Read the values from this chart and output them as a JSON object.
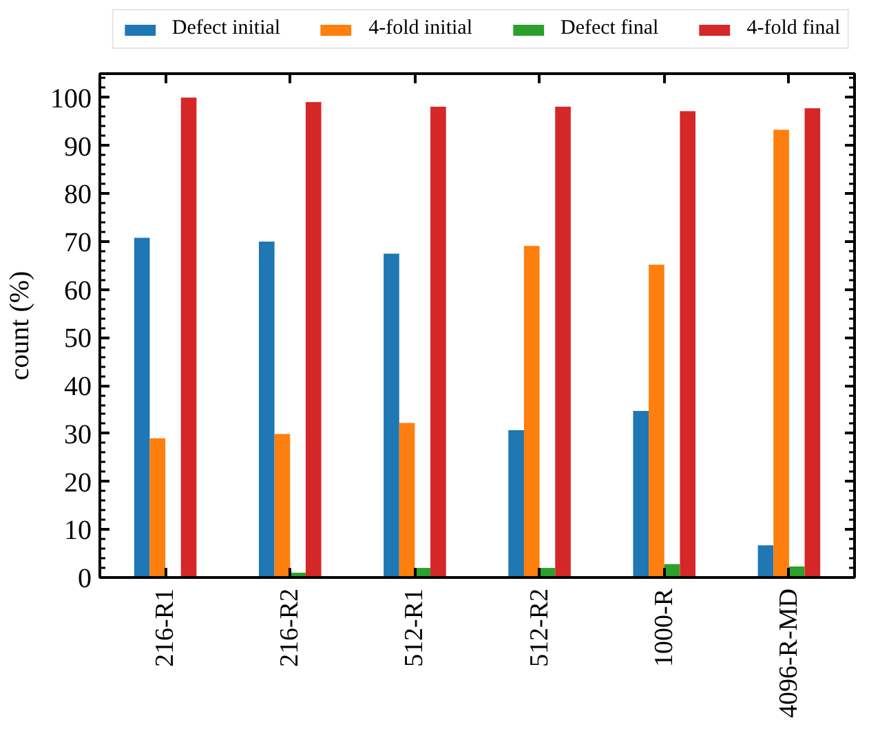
{
  "chart_data": {
    "type": "bar",
    "categories": [
      "216-R1",
      "216-R2",
      "512-R1",
      "512-R2",
      "1000-R",
      "4096-R-MD"
    ],
    "series": [
      {
        "name": "Defect initial",
        "color": "#1f77b4",
        "values": [
          70.8,
          70.0,
          67.5,
          30.7,
          34.7,
          6.7
        ]
      },
      {
        "name": "4-fold initial",
        "color": "#ff7f0e",
        "values": [
          29.0,
          29.9,
          32.2,
          69.1,
          65.2,
          93.3
        ]
      },
      {
        "name": "Defect final",
        "color": "#2ca02c",
        "values": [
          0,
          1.0,
          2.0,
          2.0,
          2.8,
          2.3
        ]
      },
      {
        "name": "4-fold final",
        "color": "#d62728",
        "values": [
          100,
          99.1,
          98.1,
          98.1,
          97.2,
          97.8
        ]
      }
    ],
    "ylabel": "count (%)",
    "ylim": [
      0,
      105
    ],
    "yticks": [
      0,
      10,
      20,
      30,
      40,
      50,
      60,
      70,
      80,
      90,
      100
    ],
    "legend": "top"
  }
}
